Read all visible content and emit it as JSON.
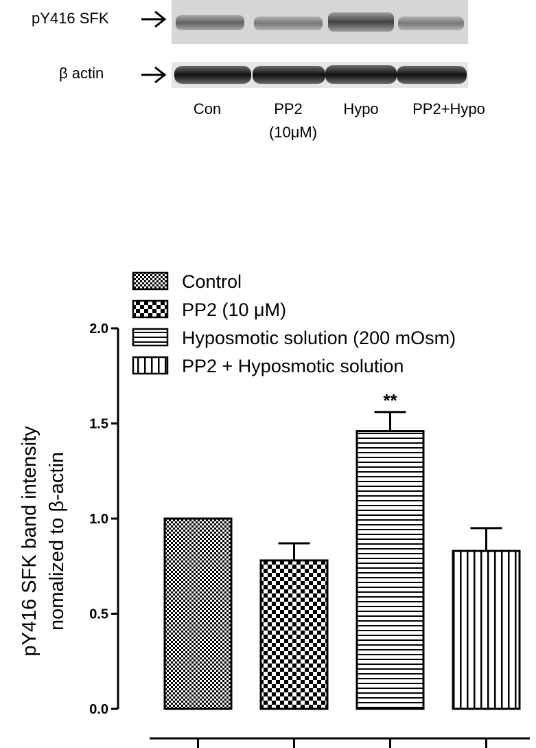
{
  "blot": {
    "rows": [
      {
        "label": "pY416 SFK"
      },
      {
        "label": "β actin"
      }
    ],
    "lanes": [
      {
        "line1": "Con",
        "line2": ""
      },
      {
        "line1": "PP2",
        "line2": "(10μM)"
      },
      {
        "line1": "Hypo",
        "line2": ""
      },
      {
        "line1": "PP2+Hypo",
        "line2": ""
      }
    ]
  },
  "chart_data": {
    "type": "bar",
    "title": "",
    "xlabel": "",
    "ylabel": [
      "pY416 SFK band intensity",
      "nomalized to β-actin"
    ],
    "ylim": [
      0,
      2.0
    ],
    "yticks": [
      "0.0",
      "0.5",
      "1.0",
      "1.5",
      "2.0"
    ],
    "legend_position": "top-left",
    "series": [
      {
        "name": "Control",
        "value": 1.0,
        "error": 0,
        "pattern": "fine-check",
        "annotation": ""
      },
      {
        "name": "PP2 (10 μM)",
        "value": 0.78,
        "error": 0.09,
        "pattern": "checker",
        "annotation": ""
      },
      {
        "name": "Hyposmotic solution (200 mOsm)",
        "value": 1.46,
        "error": 0.1,
        "pattern": "horizontal-lines",
        "annotation": "**"
      },
      {
        "name": "PP2 + Hyposmotic solution",
        "value": 0.83,
        "error": 0.12,
        "pattern": "vertical-lines",
        "annotation": ""
      }
    ]
  }
}
